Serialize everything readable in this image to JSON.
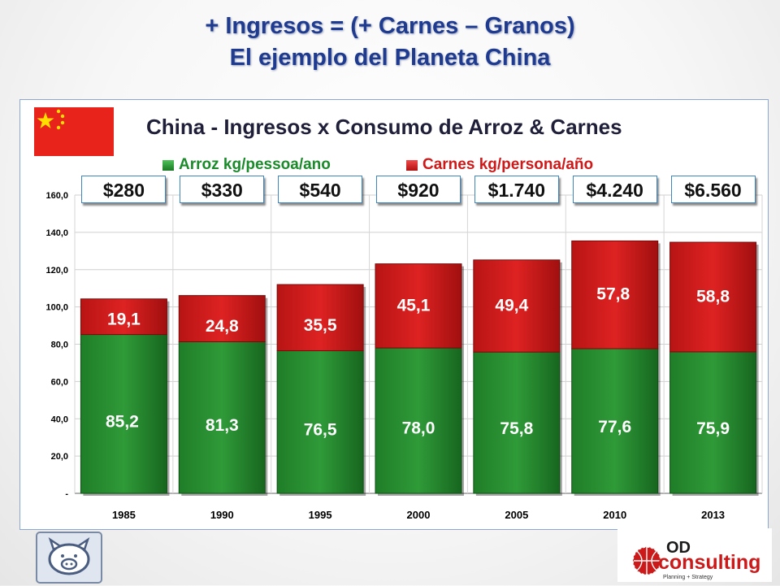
{
  "slide": {
    "title_line1": "+ Ingresos = (+ Carnes – Granos)",
    "title_line2": "El ejemplo del Planeta China"
  },
  "incomes": [
    "$280",
    "$330",
    "$540",
    "$920",
    "$1.740",
    "$4.240",
    "$6.560"
  ],
  "logos": {
    "od_top": "OD",
    "od_main": "consulting",
    "od_sub": "Planning + Strategy"
  },
  "colors": {
    "title": "#1f3b8f",
    "arroz": "#1a8a2a",
    "carnes": "#d01818"
  },
  "chart_data": {
    "type": "bar",
    "stacked": true,
    "title": "China - Ingresos x Consumo de Arroz & Carnes",
    "categories": [
      "1985",
      "1990",
      "1995",
      "2000",
      "2005",
      "2010",
      "2013"
    ],
    "series": [
      {
        "name": "Arroz kg/pessoa/ano",
        "values": [
          85.2,
          81.3,
          76.5,
          78.0,
          75.8,
          77.6,
          75.9
        ],
        "labels": [
          "85,2",
          "81,3",
          "76,5",
          "78,0",
          "75,8",
          "77,6",
          "75,9"
        ]
      },
      {
        "name": "Carnes kg/persona/año",
        "values": [
          19.1,
          24.8,
          35.5,
          45.1,
          49.4,
          57.8,
          58.8
        ],
        "labels": [
          "19,1",
          "24,8",
          "35,5",
          "45,1",
          "49,4",
          "57,8",
          "58,8"
        ]
      }
    ],
    "yticks": [
      "-",
      "20,0",
      "40,0",
      "60,0",
      "80,0",
      "100,0",
      "120,0",
      "140,0",
      "160,0"
    ],
    "ylim": [
      0,
      160
    ],
    "grid": true,
    "legend": "top"
  }
}
